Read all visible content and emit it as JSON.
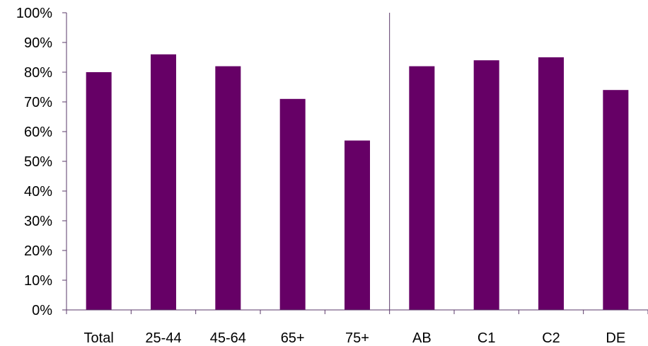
{
  "chart_data": {
    "type": "bar",
    "categories": [
      "Total",
      "25-44",
      "45-64",
      "65+",
      "75+",
      "AB",
      "C1",
      "C2",
      "DE"
    ],
    "values": [
      80,
      86,
      82,
      71,
      57,
      82,
      84,
      85,
      74
    ],
    "value_unit": "%",
    "ylim": [
      0,
      100
    ],
    "yticks": [
      "0%",
      "10%",
      "20%",
      "30%",
      "40%",
      "50%",
      "60%",
      "70%",
      "80%",
      "90%",
      "100%"
    ],
    "ytick_values": [
      0,
      10,
      20,
      30,
      40,
      50,
      60,
      70,
      80,
      90,
      100
    ],
    "grid": false,
    "group_divider_after_category": "75+",
    "bar_color": "#660066",
    "axis_color": "#5a3a6a"
  }
}
